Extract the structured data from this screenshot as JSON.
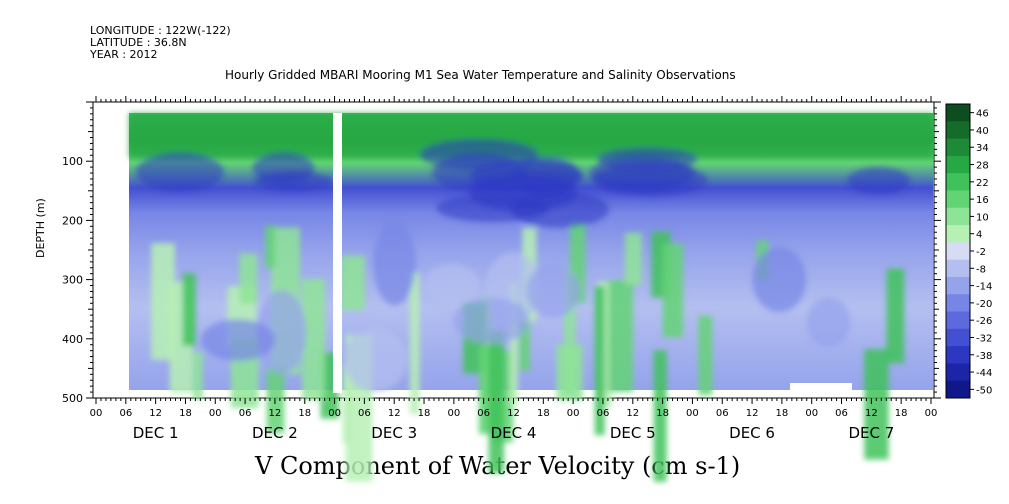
{
  "header": {
    "longitude": "LONGITUDE : 122W(-122)",
    "latitude": "LATITUDE : 36.8N",
    "year": "YEAR : 2012"
  },
  "chart_data": {
    "type": "heatmap",
    "title": "Hourly Gridded MBARI Mooring M1 Sea Water Temperature and Salinity Observations",
    "xlabel": "V Component of Water Velocity (cm s-1)",
    "ylabel": "DEPTH (m)",
    "ylim": [
      500,
      0
    ],
    "yticks": [
      100,
      200,
      300,
      400,
      500
    ],
    "hour_ticks": [
      "00",
      "06",
      "12",
      "18",
      "00",
      "06",
      "12",
      "18",
      "00",
      "06",
      "12",
      "18",
      "00",
      "06",
      "12",
      "18",
      "00",
      "06",
      "12",
      "18",
      "00",
      "06",
      "12",
      "18",
      "00",
      "06",
      "12",
      "18",
      "00"
    ],
    "day_labels": [
      "DEC  1",
      "DEC  2",
      "DEC  3",
      "DEC  4",
      "DEC  5",
      "DEC  6",
      "DEC  7"
    ],
    "colorbar_labels": [
      "46",
      "40",
      "34",
      "28",
      "22",
      "16",
      "10",
      "4",
      "-2",
      "-8",
      "-14",
      "-20",
      "-26",
      "-32",
      "-38",
      "-44",
      "-50"
    ],
    "colorbar_colors": [
      "#0d4d1f",
      "#146b2a",
      "#1c8a36",
      "#26a844",
      "#3fc25a",
      "#63d474",
      "#8ee496",
      "#b6f0b4",
      "#d6dcf4",
      "#b4bff0",
      "#95a3ec",
      "#7786e6",
      "#5c6ade",
      "#4350d2",
      "#2d38c2",
      "#1c25a8",
      "#101788"
    ],
    "profiles": [
      {
        "day": 1,
        "surface_jet": "strong positive (green)",
        "subsurface": "negative (blue) near 150 m"
      },
      {
        "day": 2,
        "surface_jet": "positive",
        "subsurface": "mixed"
      },
      {
        "day": 3,
        "surface_jet": "positive",
        "subsurface": "negative near 120-170 m"
      },
      {
        "day": 4,
        "surface_jet": "positive",
        "subsurface": "negative near 130 m"
      },
      {
        "day": 5,
        "surface_jet": "positive",
        "subsurface": "negative near 120 m"
      },
      {
        "day": 6,
        "surface_jet": "positive",
        "subsurface": "negative near 110 m"
      },
      {
        "day": 7,
        "surface_jet": "weak positive",
        "subsurface": "negative near 90 m"
      }
    ]
  }
}
